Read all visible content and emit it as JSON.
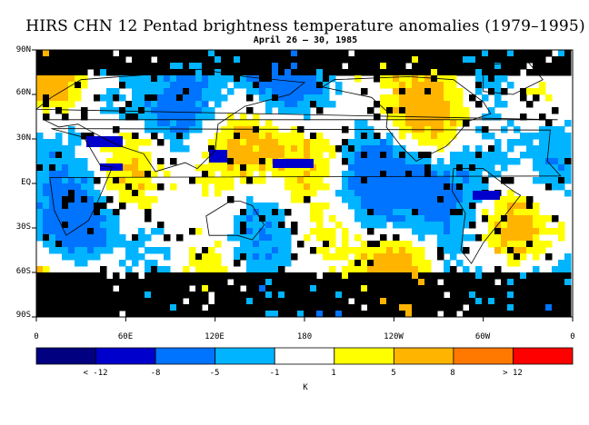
{
  "title": "HIRS CHN 12 Pentad brightness temperature anomalies (1979–1995)",
  "subtitle": "April 26 – 30, 1985",
  "map": {
    "projection": "equirectangular",
    "lat_labels": [
      "90N",
      "60N",
      "30N",
      "EQ",
      "30S",
      "60S",
      "90S"
    ],
    "lon_labels": [
      "0",
      "60E",
      "120E",
      "180",
      "120W",
      "60W",
      "0"
    ],
    "no_data_color": "#000000",
    "coastline_color": "#000000"
  },
  "colorbar": {
    "colors": [
      "#000080",
      "#0000cd",
      "#0073ff",
      "#00b4ff",
      "#ffffff",
      "#ffff00",
      "#ffb400",
      "#ff7800",
      "#ff0000"
    ],
    "tick_labels": [
      "< -12",
      "-8",
      "-5",
      "-1",
      "1",
      "5",
      "8",
      "> 12"
    ],
    "unit": "K"
  }
}
